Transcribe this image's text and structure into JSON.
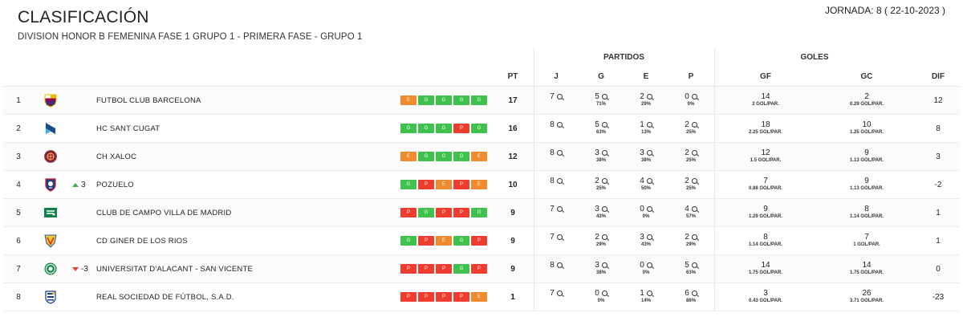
{
  "header": {
    "title": "CLASIFICACIÓN",
    "subtitle": "DIVISION HONOR B FEMENINA FASE 1 GRUPO 1 - PRIMERA FASE - GRUPO 1",
    "jornada": "JORNADA: 8 ( 22-10-2023 )"
  },
  "columns": {
    "partidos_group": "PARTIDOS",
    "goles_group": "GOLES",
    "pt": "PT",
    "j": "J",
    "g": "G",
    "e": "E",
    "p": "P",
    "gf": "GF",
    "gc": "GC",
    "dif": "DIF"
  },
  "colors": {
    "G": "#3ec14d",
    "E": "#f08a2c",
    "P": "#ef3c2f",
    "up": "#3bb54a",
    "down": "#e5412e"
  },
  "rows": [
    {
      "pos": "1",
      "logo": "fc-barcelona-crest",
      "trend": "",
      "trend_dir": "",
      "team": "FUTBOL CLUB BARCELONA",
      "form": [
        "E",
        "G",
        "G",
        "G",
        "G"
      ],
      "pt": "17",
      "j": "7",
      "g": "5",
      "g_pct": "71%",
      "e": "2",
      "e_pct": "29%",
      "p": "0",
      "p_pct": "0%",
      "gf": "14",
      "gf_avg": "2 GOL/PAR.",
      "gc": "2",
      "gc_avg": "0.29 GOL/PAR.",
      "dif": "12"
    },
    {
      "pos": "2",
      "logo": "hc-sant-cugat-crest",
      "trend": "",
      "trend_dir": "",
      "team": "HC SANT CUGAT",
      "form": [
        "G",
        "G",
        "G",
        "P",
        "G"
      ],
      "pt": "16",
      "j": "8",
      "g": "5",
      "g_pct": "63%",
      "e": "1",
      "e_pct": "13%",
      "p": "2",
      "p_pct": "25%",
      "gf": "18",
      "gf_avg": "2.25 GOL/PAR.",
      "gc": "10",
      "gc_avg": "1.25 GOL/PAR.",
      "dif": "8"
    },
    {
      "pos": "3",
      "logo": "ch-xaloc-crest",
      "trend": "",
      "trend_dir": "",
      "team": "CH XALOC",
      "form": [
        "E",
        "G",
        "G",
        "G",
        "E"
      ],
      "pt": "12",
      "j": "8",
      "g": "3",
      "g_pct": "38%",
      "e": "3",
      "e_pct": "38%",
      "p": "2",
      "p_pct": "25%",
      "gf": "12",
      "gf_avg": "1.5 GOL/PAR.",
      "gc": "9",
      "gc_avg": "1.13 GOL/PAR.",
      "dif": "3"
    },
    {
      "pos": "4",
      "logo": "pozuelo-crest",
      "trend": "3",
      "trend_dir": "up",
      "team": "POZUELO",
      "form": [
        "G",
        "P",
        "E",
        "P",
        "E"
      ],
      "pt": "10",
      "j": "8",
      "g": "2",
      "g_pct": "25%",
      "e": "4",
      "e_pct": "50%",
      "p": "2",
      "p_pct": "25%",
      "gf": "7",
      "gf_avg": "0.88 GOL/PAR.",
      "gc": "9",
      "gc_avg": "1.13 GOL/PAR.",
      "dif": "-2"
    },
    {
      "pos": "5",
      "logo": "club-de-campo-crest",
      "trend": "",
      "trend_dir": "",
      "team": "CLUB DE CAMPO VILLA DE MADRID",
      "form": [
        "P",
        "G",
        "P",
        "P",
        "G"
      ],
      "pt": "9",
      "j": "7",
      "g": "3",
      "g_pct": "43%",
      "e": "0",
      "e_pct": "0%",
      "p": "4",
      "p_pct": "57%",
      "gf": "9",
      "gf_avg": "1.29 GOL/PAR.",
      "gc": "8",
      "gc_avg": "1.14 GOL/PAR.",
      "dif": "1"
    },
    {
      "pos": "6",
      "logo": "cd-giner-de-los-rios-crest",
      "trend": "",
      "trend_dir": "",
      "team": "CD GINER DE LOS RIOS",
      "form": [
        "G",
        "P",
        "E",
        "G",
        "P"
      ],
      "pt": "9",
      "j": "7",
      "g": "2",
      "g_pct": "29%",
      "e": "3",
      "e_pct": "43%",
      "p": "2",
      "p_pct": "29%",
      "gf": "8",
      "gf_avg": "1.14 GOL/PAR.",
      "gc": "7",
      "gc_avg": "1 GOL/PAR.",
      "dif": "1"
    },
    {
      "pos": "7",
      "logo": "universitat-alacant-crest",
      "trend": "-3",
      "trend_dir": "down",
      "team": "UNIVERSITAT D'ALACANT - SAN VICENTE",
      "form": [
        "P",
        "P",
        "P",
        "G",
        "P"
      ],
      "pt": "9",
      "j": "8",
      "g": "3",
      "g_pct": "38%",
      "e": "0",
      "e_pct": "0%",
      "p": "5",
      "p_pct": "63%",
      "gf": "14",
      "gf_avg": "1.75 GOL/PAR.",
      "gc": "14",
      "gc_avg": "1.75 GOL/PAR.",
      "dif": "0"
    },
    {
      "pos": "8",
      "logo": "real-sociedad-crest",
      "trend": "",
      "trend_dir": "",
      "team": "REAL SOCIEDAD DE FÚTBOL, S.A.D.",
      "form": [
        "P",
        "P",
        "P",
        "P",
        "E"
      ],
      "pt": "1",
      "j": "7",
      "g": "0",
      "g_pct": "0%",
      "e": "1",
      "e_pct": "14%",
      "p": "6",
      "p_pct": "86%",
      "gf": "3",
      "gf_avg": "0.43 GOL/PAR.",
      "gc": "26",
      "gc_avg": "3.71 GOL/PAR.",
      "dif": "-23"
    }
  ]
}
